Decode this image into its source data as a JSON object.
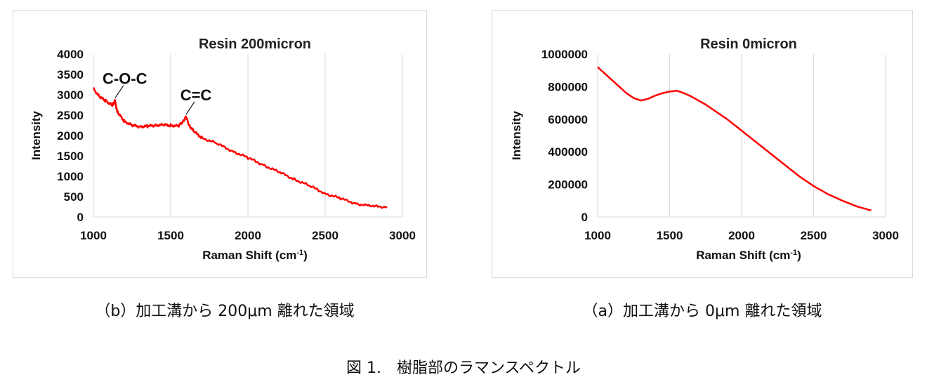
{
  "captions": {
    "b": "（b）加工溝から 200μm 離れた領域",
    "a": "（a）加工溝から 0μm 離れた領域"
  },
  "figure_title": "図 1.　樹脂部のラマンスペクトル",
  "chart_data": [
    {
      "type": "line",
      "title": "Resin  200micron",
      "xlabel": "Raman Shift (cm",
      "xlabel_sup": "-1",
      "xlabel_end": ")",
      "ylabel": "Intensity",
      "xlim": [
        1000,
        3000
      ],
      "ylim": [
        0,
        4000
      ],
      "xticks": [
        "1000",
        "1500",
        "2000",
        "2500",
        "3000"
      ],
      "yticks": [
        "0",
        "500",
        "1000",
        "1500",
        "2000",
        "2500",
        "3000",
        "3500",
        "4000"
      ],
      "annotations": [
        {
          "text": "C-O-C",
          "x": 1140,
          "y": 2850
        },
        {
          "text": "C=C",
          "x": 1600,
          "y": 2450
        }
      ],
      "line_color": "#ff0000",
      "series": [
        {
          "x": [
            1000,
            1040,
            1080,
            1120,
            1130,
            1140,
            1150,
            1160,
            1200,
            1250,
            1300,
            1350,
            1400,
            1450,
            1500,
            1550,
            1580,
            1600,
            1620,
            1650,
            1700,
            1800,
            1900,
            2000,
            2100,
            2200,
            2300,
            2400,
            2500,
            2600,
            2700,
            2800,
            2900
          ],
          "y": [
            3150,
            2950,
            2850,
            2750,
            2780,
            2850,
            2650,
            2550,
            2350,
            2250,
            2220,
            2230,
            2250,
            2260,
            2250,
            2230,
            2350,
            2450,
            2250,
            2100,
            1950,
            1800,
            1620,
            1450,
            1280,
            1100,
            930,
            760,
            580,
            450,
            330,
            260,
            250
          ]
        }
      ]
    },
    {
      "type": "line",
      "title": "Resin  0micron",
      "xlabel": "Raman Shift (cm",
      "xlabel_sup": "-1",
      "xlabel_end": ")",
      "ylabel": "Intensity",
      "xlim": [
        1000,
        3000
      ],
      "ylim": [
        0,
        1000000
      ],
      "xticks": [
        "1000",
        "1500",
        "2000",
        "2500",
        "3000"
      ],
      "yticks": [
        "0",
        "200000",
        "400000",
        "600000",
        "800000",
        "1000000"
      ],
      "line_color": "#ff0000",
      "series": [
        {
          "x": [
            1000,
            1050,
            1100,
            1150,
            1200,
            1250,
            1300,
            1350,
            1400,
            1450,
            1500,
            1550,
            1600,
            1650,
            1700,
            1750,
            1800,
            1900,
            2000,
            2100,
            2200,
            2300,
            2400,
            2500,
            2600,
            2700,
            2800,
            2900
          ],
          "y": [
            920000,
            880000,
            840000,
            800000,
            760000,
            730000,
            715000,
            725000,
            745000,
            760000,
            770000,
            775000,
            760000,
            740000,
            715000,
            690000,
            660000,
            600000,
            530000,
            460000,
            390000,
            320000,
            250000,
            190000,
            140000,
            100000,
            65000,
            40000
          ]
        }
      ]
    }
  ]
}
